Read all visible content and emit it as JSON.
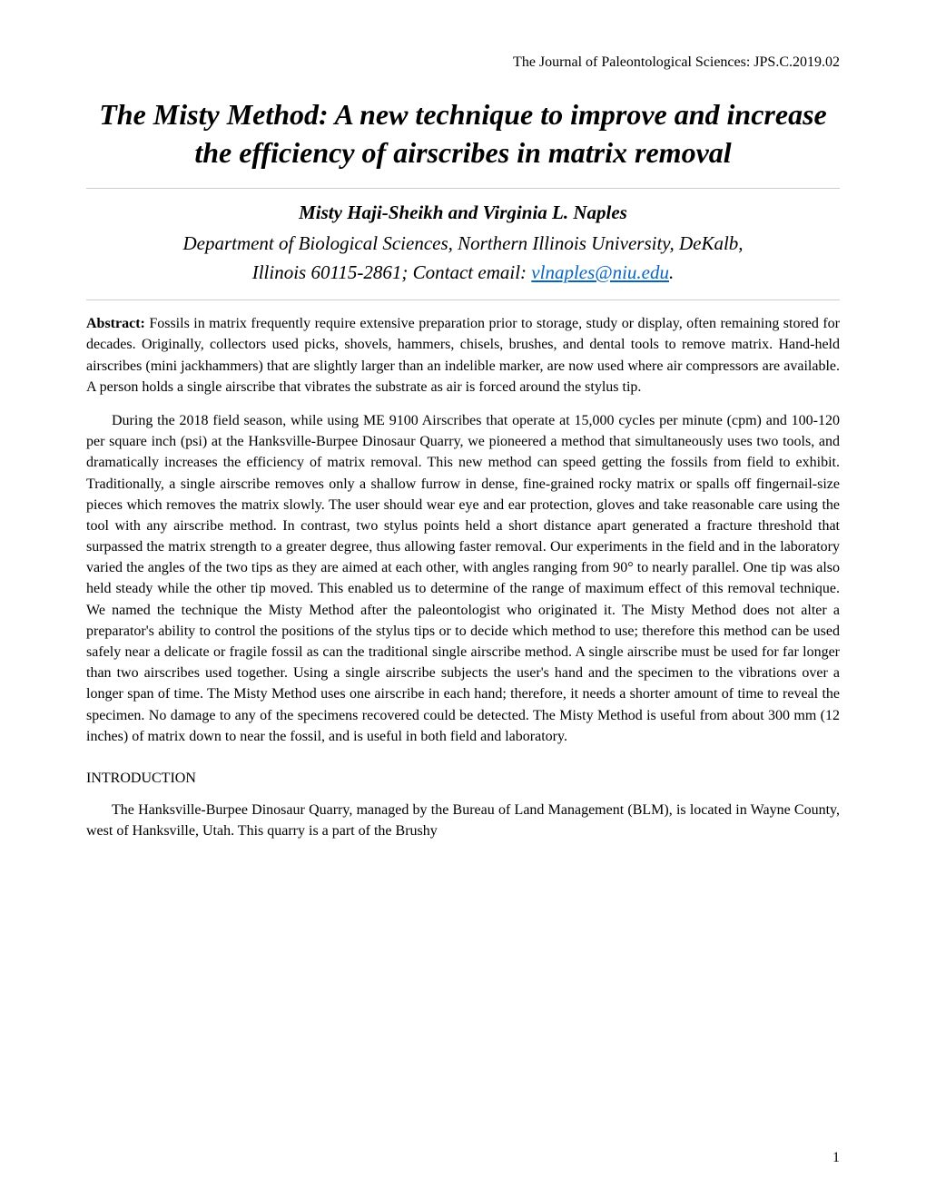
{
  "header": {
    "journal_info": "The Journal of Paleontological Sciences: JPS.C.2019.02"
  },
  "title": "The Misty Method: A new technique to improve and increase the efficiency of airscribes in matrix removal",
  "authors": "Misty Haji-Sheikh and Virginia L. Naples",
  "affiliation": {
    "line1": "Department of Biological Sciences, Northern Illinois University, DeKalb,",
    "line2_prefix": "Illinois 60115-2861; Contact email: ",
    "email": "vlnaples@niu.edu",
    "line2_suffix": "."
  },
  "abstract": {
    "label": "Abstract:",
    "paragraph1": " Fossils in matrix frequently require extensive preparation prior to storage, study or display, often remaining stored for decades. Originally, collectors used picks, shovels, hammers, chisels, brushes, and dental tools to remove matrix. Hand-held airscribes (mini jackhammers) that are slightly larger than an indelible marker, are now used where air compressors are available. A person holds a single airscribe that vibrates the substrate as air is forced around the stylus tip.",
    "paragraph2": "During the 2018 field season, while using ME 9100 Airscribes that operate at 15,000 cycles per minute (cpm) and 100-120 per square inch (psi) at the Hanksville-Burpee Dinosaur Quarry, we pioneered a method that simultaneously uses two tools, and dramatically increases the efficiency of matrix removal. This new method can speed getting the fossils from field to exhibit. Traditionally, a single airscribe removes only a shallow furrow in dense, fine-grained rocky matrix or spalls off fingernail-size pieces which removes the matrix slowly. The user should wear eye and ear protection, gloves and take reasonable care using the tool with any airscribe method. In contrast, two stylus points held a short distance apart generated a fracture threshold that surpassed the matrix strength to a greater degree, thus allowing faster removal. Our experiments in the field and in the laboratory varied the angles of the two tips as they are aimed at each other, with angles ranging from 90° to nearly parallel. One tip was also held steady while the other tip moved. This enabled us to determine of the range of maximum effect of this removal technique. We named the technique the Misty Method after the paleontologist who originated it. The Misty Method does not alter a preparator's ability to control the positions of the stylus tips or to decide which method to use; therefore this method can be used safely near a delicate or fragile fossil as can the traditional single airscribe method. A single airscribe must be used for far longer than two airscribes used together. Using a single airscribe subjects the user's hand and the specimen to the vibrations over a longer span of time. The Misty Method uses one airscribe in each hand; therefore, it needs a shorter amount of time to reveal the specimen. No damage to any of the specimens recovered could be detected. The Misty Method is useful from about 300 mm (12 inches) of matrix down to near the fossil, and is useful in both field and laboratory."
  },
  "sections": {
    "introduction": {
      "heading": "INTRODUCTION",
      "paragraph1": "The Hanksville-Burpee Dinosaur Quarry, managed by the Bureau of Land Management (BLM), is located in Wayne County, west of Hanksville, Utah. This quarry is a part of the Brushy"
    }
  },
  "page_number": "1",
  "colors": {
    "text": "#000000",
    "background": "#ffffff",
    "link": "#0563c1",
    "divider": "#cccccc"
  },
  "typography": {
    "body_font": "Times New Roman",
    "title_fontsize": 32,
    "author_fontsize": 21,
    "body_fontsize": 16
  }
}
